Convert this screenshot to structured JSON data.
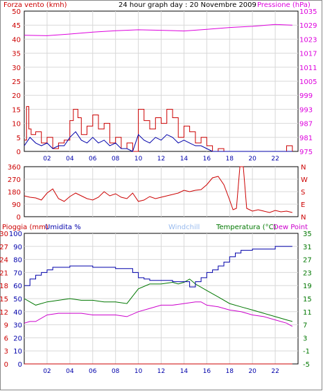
{
  "title": "24 hour graph day : 20 Novembre 2009",
  "colors": {
    "wind": "#cc0000",
    "gust": "#0000aa",
    "pressure": "#dd00dd",
    "direction": "#cc0000",
    "rain": "#cc0000",
    "humidity": "#0000aa",
    "windchill": "#99bbee",
    "temperature": "#007700",
    "dewpoint": "#cc00cc",
    "grid": "#d8d8d8",
    "frame": "#000000"
  },
  "chart_data": [
    {
      "type": "line",
      "panel": "wind-pressure",
      "y_left_label": "Forza vento (kmh)",
      "y_right_label": "Pressione (hPa)",
      "ylim_left": [
        0,
        50
      ],
      "ylim_right": [
        975,
        1035
      ],
      "ticks_left": [
        "0",
        "5",
        "10",
        "15",
        "20",
        "25",
        "30",
        "35",
        "40",
        "45",
        "50"
      ],
      "ticks_right": [
        "975",
        "981",
        "987",
        "993",
        "999",
        "1005",
        "1011",
        "1017",
        "1023",
        "1029",
        "1035"
      ],
      "x_ticks": [
        "02",
        "04",
        "06",
        "08",
        "10",
        "12",
        "14",
        "16",
        "18",
        "20",
        "22"
      ],
      "series": [
        {
          "role": "pressure",
          "x": [
            0,
            2,
            4,
            6,
            8,
            10,
            12,
            14,
            16,
            18,
            20,
            22,
            23.5
          ],
          "values": [
            1024.7,
            1024.5,
            1025.2,
            1026.0,
            1026.6,
            1027.0,
            1026.8,
            1026.5,
            1027.2,
            1028.0,
            1028.5,
            1029.3,
            1029.0
          ]
        },
        {
          "role": "wind",
          "x": [
            0,
            0.2,
            0.4,
            0.6,
            1,
            1.5,
            2,
            2.5,
            3,
            3.5,
            4,
            4.3,
            4.7,
            5,
            5.5,
            6,
            6.5,
            7,
            7.5,
            8,
            8.5,
            9,
            9.5,
            10,
            10.5,
            11,
            11.5,
            12,
            12.5,
            13,
            13.5,
            14,
            14.5,
            15,
            15.5,
            16,
            16.5,
            17,
            17.5,
            18,
            18.5,
            19,
            19.5,
            20,
            20.5,
            21,
            21.5,
            22,
            22.5,
            23,
            23.5
          ],
          "values": [
            4,
            16,
            8,
            6,
            7,
            3,
            5,
            1,
            3,
            4,
            11,
            15,
            12,
            6,
            9,
            13,
            8,
            10,
            3,
            5,
            1,
            3,
            0,
            15,
            11,
            8,
            12,
            10,
            15,
            12,
            5,
            9,
            7,
            3,
            5,
            2,
            0,
            1,
            0,
            0,
            0,
            0,
            0,
            0,
            0,
            0,
            0,
            0,
            0,
            2,
            0
          ]
        },
        {
          "role": "gust",
          "x": [
            0,
            0.5,
            1,
            1.5,
            2,
            2.5,
            3,
            3.5,
            4,
            4.5,
            5,
            5.5,
            6,
            6.5,
            7,
            7.5,
            8,
            8.5,
            9,
            9.5,
            10,
            10.5,
            11,
            11.5,
            12,
            12.5,
            13,
            13.5,
            14,
            14.5,
            15,
            15.5,
            16,
            16.5,
            17,
            18,
            19,
            20,
            21,
            22,
            23,
            23.5
          ],
          "values": [
            2,
            5,
            3,
            2,
            3,
            1,
            2,
            2,
            5,
            7,
            4,
            3,
            5,
            3,
            4,
            2,
            3,
            1,
            1,
            0,
            6,
            4,
            3,
            5,
            4,
            6,
            5,
            3,
            4,
            3,
            2,
            2,
            1,
            0,
            0,
            0,
            0,
            0,
            0,
            0,
            0,
            0
          ]
        }
      ]
    },
    {
      "type": "line",
      "panel": "wind-direction",
      "ylim": [
        0,
        360
      ],
      "ticks_left": [
        "0",
        "90",
        "180",
        "270",
        "360"
      ],
      "ticks_right": [
        "N",
        "E",
        "S",
        "W",
        "N"
      ],
      "series": [
        {
          "role": "direction",
          "x": [
            0,
            0.5,
            1,
            1.5,
            2,
            2.5,
            3,
            3.5,
            4,
            4.5,
            5,
            5.5,
            6,
            6.5,
            7,
            7.5,
            8,
            8.5,
            9,
            9.5,
            10,
            10.5,
            11,
            11.5,
            12,
            12.5,
            13,
            13.5,
            14,
            14.5,
            15,
            15.5,
            16,
            16.5,
            17,
            17.5,
            18,
            18.3,
            18.6,
            18.9,
            19.2,
            19.5,
            20,
            20.5,
            21,
            21.5,
            22,
            22.5,
            23,
            23.5
          ],
          "values": [
            150,
            140,
            135,
            120,
            170,
            200,
            130,
            110,
            145,
            170,
            150,
            130,
            120,
            140,
            180,
            150,
            165,
            140,
            130,
            170,
            110,
            120,
            145,
            130,
            140,
            150,
            160,
            170,
            190,
            180,
            190,
            195,
            230,
            280,
            290,
            230,
            120,
            50,
            60,
            360,
            360,
            60,
            40,
            50,
            40,
            30,
            45,
            35,
            40,
            30
          ]
        }
      ]
    },
    {
      "type": "line",
      "panel": "rain-humidity-temperature",
      "y_left_labels": [
        "Pioggia (mm)",
        "Umidita %"
      ],
      "y_right_labels": [
        "Windchill",
        "Temperatura (°C)",
        "Dew Point"
      ],
      "ylim_humidity": [
        0,
        100
      ],
      "ylim_temperature": [
        -5,
        35
      ],
      "ticks_rain": [
        "0",
        "3",
        "6",
        "9",
        "12",
        "15",
        "18",
        "21",
        "24",
        "27",
        "30"
      ],
      "ticks_humidity": [
        "0",
        "10",
        "20",
        "30",
        "40",
        "50",
        "60",
        "70",
        "80",
        "90",
        "100"
      ],
      "ticks_right": [
        "-5",
        "-1",
        "3",
        "7",
        "11",
        "15",
        "19",
        "23",
        "27",
        "31",
        "35"
      ],
      "x_ticks": [
        "02",
        "04",
        "06",
        "08",
        "10",
        "12",
        "14",
        "16",
        "18",
        "20",
        "22"
      ],
      "series": [
        {
          "role": "humidity",
          "x": [
            0,
            0.5,
            1,
            1.5,
            2,
            2.5,
            3,
            4,
            5,
            6,
            7,
            8,
            9,
            9.5,
            10,
            10.5,
            11,
            12,
            13,
            14,
            14.5,
            15,
            15.5,
            16,
            16.5,
            17,
            17.5,
            18,
            18.5,
            19,
            20,
            21,
            22,
            23,
            23.5
          ],
          "values": [
            60,
            65,
            68,
            70,
            72,
            74,
            74,
            75,
            75,
            74,
            74,
            73,
            73,
            70,
            66,
            65,
            64,
            64,
            63,
            63,
            59,
            63,
            66,
            70,
            72,
            75,
            78,
            82,
            85,
            87,
            88,
            88,
            90,
            90,
            90
          ]
        },
        {
          "role": "temperature",
          "x": [
            0,
            0.5,
            1,
            2,
            3,
            4,
            5,
            6,
            7,
            8,
            9,
            10,
            11,
            12,
            13,
            13.5,
            14,
            14.5,
            15,
            16,
            17,
            18,
            19,
            20,
            21,
            22,
            23,
            23.5
          ],
          "values": [
            15,
            14,
            13,
            14,
            14.5,
            15,
            14.5,
            14.5,
            14,
            14,
            13.5,
            18,
            19.5,
            19.5,
            20,
            19.5,
            20,
            21,
            19.5,
            17.5,
            15.5,
            13.5,
            12.5,
            11.5,
            10.5,
            9.5,
            8.5,
            8
          ]
        },
        {
          "role": "dewpoint",
          "x": [
            0,
            0.5,
            1,
            2,
            3,
            4,
            5,
            6,
            7,
            8,
            9,
            10,
            11,
            12,
            13,
            14,
            15,
            15.5,
            16,
            17,
            18,
            19,
            20,
            21,
            22,
            23,
            23.5
          ],
          "values": [
            7.5,
            8,
            8,
            10,
            10.5,
            10.5,
            10.5,
            10,
            10,
            10,
            9.5,
            11,
            12,
            13,
            13,
            13.5,
            14,
            14,
            13,
            12.5,
            11.5,
            11,
            10,
            9.5,
            8.5,
            7.5,
            6.5
          ]
        },
        {
          "role": "rain",
          "x": [
            0,
            23.5
          ],
          "values": [
            0,
            0
          ]
        }
      ]
    }
  ]
}
